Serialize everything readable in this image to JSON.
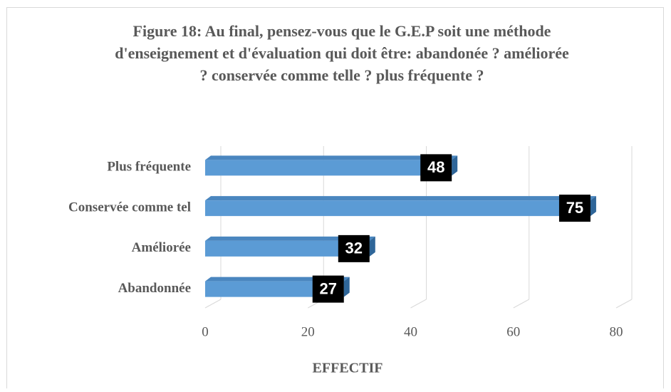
{
  "chart_data": {
    "type": "bar",
    "orientation": "horizontal",
    "title": "Figure 18: Au final, pensez-vous que le G.E.P soit une méthode d'enseignement et d'évaluation qui doit être: abandonée ? améliorée ? conservée comme telle ? plus fréquente ?",
    "categories": [
      "Plus fréquente",
      "Conservée comme tel",
      "Améliorée",
      "Abandonnée"
    ],
    "values": [
      48,
      75,
      32,
      27
    ],
    "color": "#5b9bd5",
    "xlim": [
      0,
      80
    ],
    "xticks": [
      0,
      20,
      40,
      60,
      80
    ],
    "grid": true,
    "xlabel": "EFFECTIF"
  }
}
